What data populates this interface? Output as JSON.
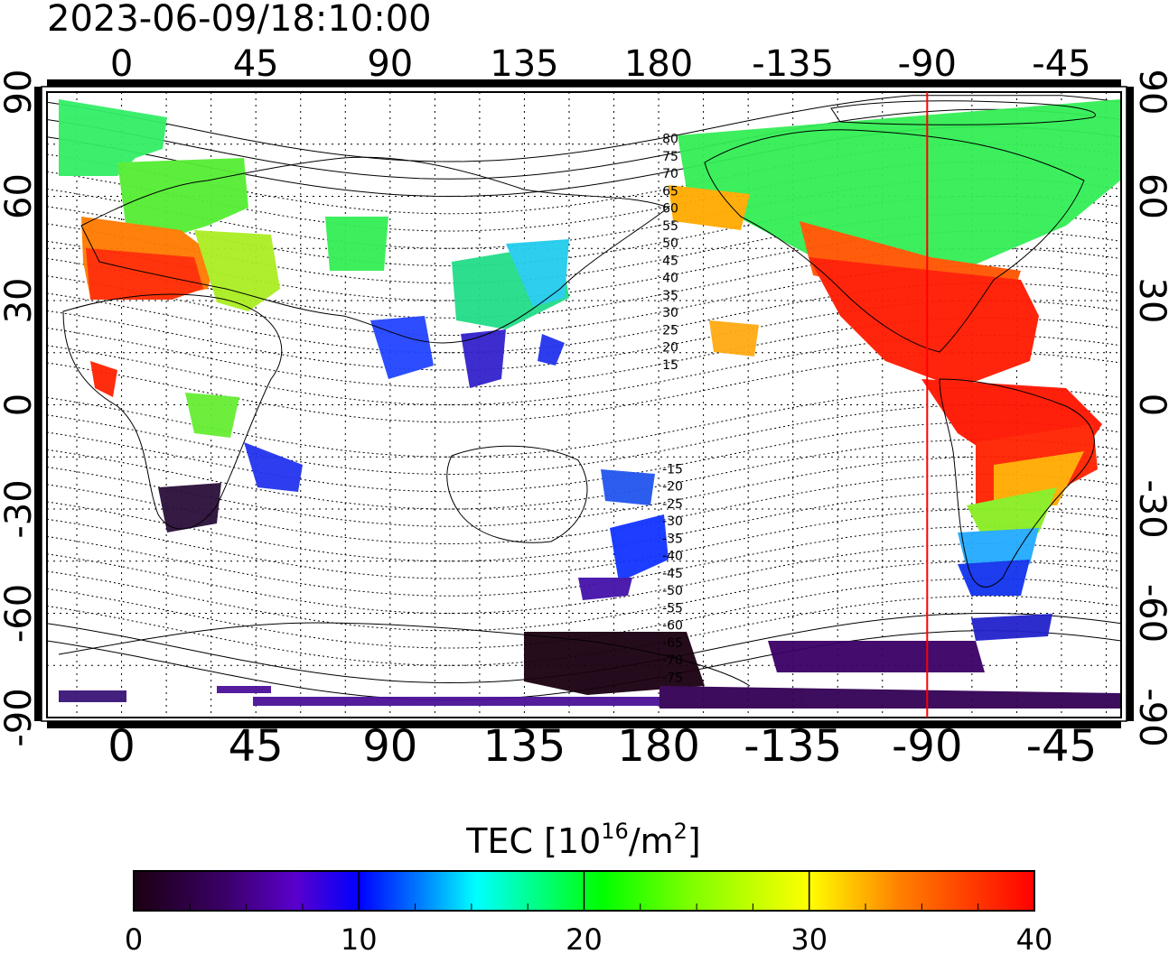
{
  "title": "2023-06-09/18:10:00",
  "map": {
    "top_lon_labels": [
      "0",
      "45",
      "90",
      "135",
      "180",
      "-135",
      "-90",
      "-45"
    ],
    "bottom_lon_labels": [
      "0",
      "45",
      "90",
      "135",
      "180",
      "-135",
      "-90",
      "-45"
    ],
    "left_lat_labels": [
      "90",
      "60",
      "30",
      "0",
      "-30",
      "-60",
      "-90"
    ],
    "right_lat_labels": [
      "90",
      "60",
      "30",
      "0",
      "-30",
      "-60",
      "-90"
    ],
    "contour_labels": [
      "80",
      "75",
      "70",
      "65",
      "60",
      "55",
      "50",
      "45",
      "40",
      "35",
      "30",
      "25",
      "20",
      "15",
      "-15",
      "-20",
      "-25",
      "-30",
      "-35",
      "-40",
      "-45",
      "-50",
      "-55",
      "-60",
      "-65",
      "-70",
      "-75"
    ],
    "marker_longitude": -90,
    "marker_color": "#ff0000",
    "grid": "dotted"
  },
  "colorbar": {
    "label_main": "TEC  [10",
    "label_exp1": "16",
    "label_mid": "/m",
    "label_exp2": "2",
    "label_end": "]",
    "ticks": [
      "0",
      "10",
      "20",
      "30",
      "40"
    ],
    "range": [
      0,
      40
    ],
    "stops": [
      "#1a0010",
      "#3a0066",
      "#5a00cc",
      "#0000ff",
      "#0080ff",
      "#00ffff",
      "#00ff80",
      "#00ff00",
      "#80ff00",
      "#ffff00",
      "#ff8000",
      "#ff0000"
    ]
  }
}
